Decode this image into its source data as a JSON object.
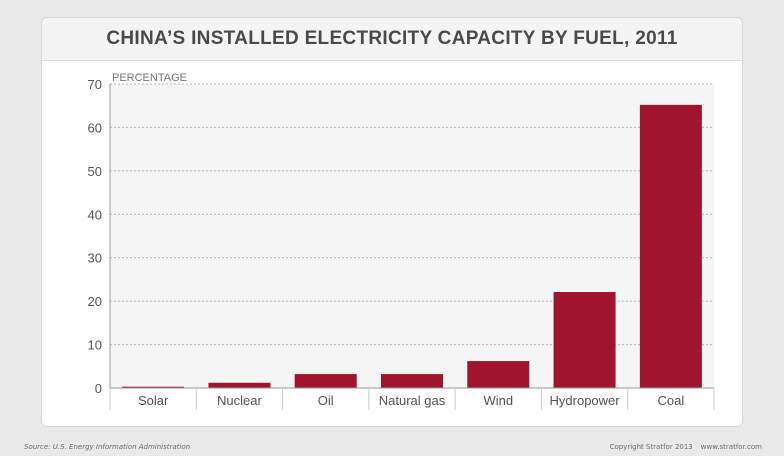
{
  "chart_data": {
    "type": "bar",
    "title": "CHINA’S INSTALLED ELECTRICITY CAPACITY BY FUEL, 2011",
    "ylabel": "PERCENTAGE",
    "xlabel": "",
    "categories": [
      "Solar",
      "Nuclear",
      "Oil",
      "Natural gas",
      "Wind",
      "Hydropower",
      "Coal"
    ],
    "values": [
      0.3,
      1.2,
      3.2,
      3.2,
      6.2,
      22.1,
      65.2
    ],
    "ylim": [
      0,
      70
    ],
    "yticks": [
      0,
      10,
      20,
      30,
      40,
      50,
      60,
      70
    ],
    "grid": true,
    "bar_color": "#a0152e"
  },
  "footer": {
    "source": "Source: U.S. Energy Information Administration",
    "copyright": "Copyright Stratfor 2013",
    "website": "www.stratfor.com"
  }
}
